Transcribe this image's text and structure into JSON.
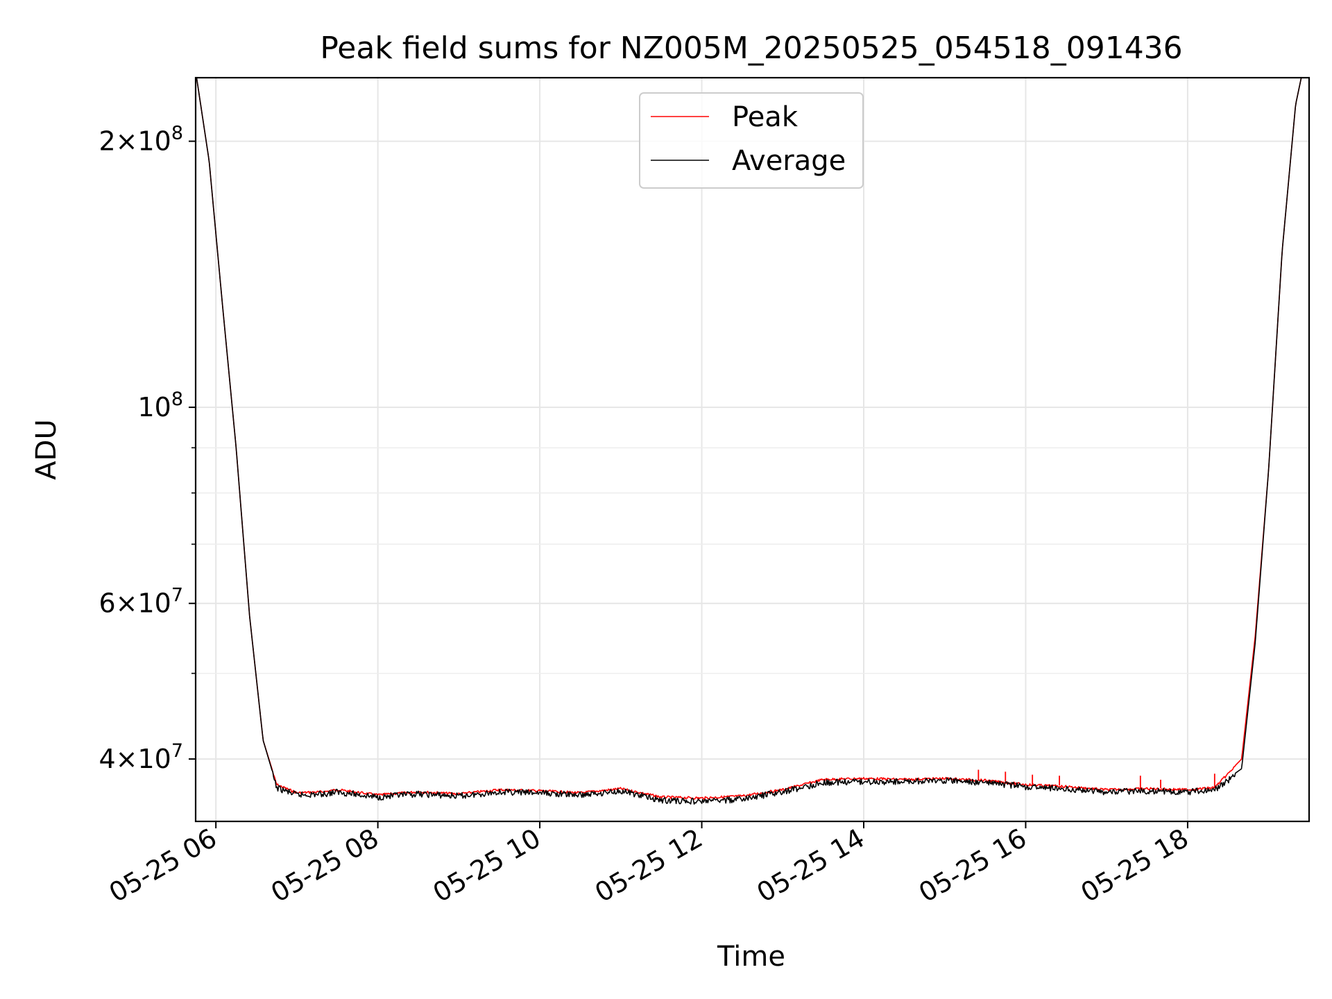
{
  "chart_data": {
    "type": "line",
    "title": "Peak field sums for NZ005M_20250525_054518_091436",
    "xlabel": "Time",
    "ylabel": "ADU",
    "y_scale": "log",
    "ylim": [
      34000000,
      236000000
    ],
    "xlim": [
      "2025-05-25T05:45",
      "2025-05-25T19:30"
    ],
    "x_ticks": [
      {
        "value": "2025-05-25T06:00",
        "label": "05-25 06"
      },
      {
        "value": "2025-05-25T08:00",
        "label": "05-25 08"
      },
      {
        "value": "2025-05-25T10:00",
        "label": "05-25 10"
      },
      {
        "value": "2025-05-25T12:00",
        "label": "05-25 12"
      },
      {
        "value": "2025-05-25T14:00",
        "label": "05-25 14"
      },
      {
        "value": "2025-05-25T16:00",
        "label": "05-25 16"
      },
      {
        "value": "2025-05-25T18:00",
        "label": "05-25 18"
      }
    ],
    "y_ticks": [
      {
        "value": 200000000,
        "mant": "2",
        "exp": "8"
      },
      {
        "value": 100000000,
        "mant": "",
        "exp": "8"
      },
      {
        "value": 60000000,
        "mant": "6",
        "exp": "7"
      },
      {
        "value": 40000000,
        "mant": "4",
        "exp": "7"
      }
    ],
    "grid": true,
    "legend": {
      "position": "upper center"
    },
    "series": [
      {
        "name": "Peak",
        "color": "#ff0000",
        "points": [
          [
            "2025-05-25T05:45",
            240000000
          ],
          [
            "2025-05-25T05:55",
            190000000
          ],
          [
            "2025-05-25T06:05",
            130000000
          ],
          [
            "2025-05-25T06:15",
            90000000
          ],
          [
            "2025-05-25T06:25",
            58000000
          ],
          [
            "2025-05-25T06:35",
            42000000
          ],
          [
            "2025-05-25T06:45",
            37500000
          ],
          [
            "2025-05-25T07:00",
            36700000
          ],
          [
            "2025-05-25T07:20",
            36800000
          ],
          [
            "2025-05-25T07:30",
            37000000
          ],
          [
            "2025-05-25T08:00",
            36500000
          ],
          [
            "2025-05-25T08:30",
            36800000
          ],
          [
            "2025-05-25T09:00",
            36600000
          ],
          [
            "2025-05-25T09:30",
            37000000
          ],
          [
            "2025-05-25T10:00",
            36900000
          ],
          [
            "2025-05-25T10:30",
            36700000
          ],
          [
            "2025-05-25T11:00",
            37100000
          ],
          [
            "2025-05-25T11:30",
            36300000
          ],
          [
            "2025-05-25T12:00",
            36200000
          ],
          [
            "2025-05-25T12:30",
            36400000
          ],
          [
            "2025-05-25T13:00",
            37000000
          ],
          [
            "2025-05-25T13:30",
            38000000
          ],
          [
            "2025-05-25T14:00",
            38100000
          ],
          [
            "2025-05-25T14:30",
            38000000
          ],
          [
            "2025-05-25T15:00",
            38100000
          ],
          [
            "2025-05-25T15:30",
            37900000
          ],
          [
            "2025-05-25T16:00",
            37500000
          ],
          [
            "2025-05-25T16:30",
            37300000
          ],
          [
            "2025-05-25T17:00",
            37000000
          ],
          [
            "2025-05-25T17:30",
            37100000
          ],
          [
            "2025-05-25T18:00",
            37000000
          ],
          [
            "2025-05-25T18:20",
            37200000
          ],
          [
            "2025-05-25T18:40",
            40000000
          ],
          [
            "2025-05-25T18:50",
            55000000
          ],
          [
            "2025-05-25T19:00",
            85000000
          ],
          [
            "2025-05-25T19:10",
            150000000
          ],
          [
            "2025-05-25T19:20",
            220000000
          ],
          [
            "2025-05-25T19:30",
            260000000
          ]
        ],
        "spikes": [
          {
            "x": "2025-05-25T15:25",
            "y": 38900000
          },
          {
            "x": "2025-05-25T15:45",
            "y": 38700000
          },
          {
            "x": "2025-05-25T16:05",
            "y": 38400000
          },
          {
            "x": "2025-05-25T16:25",
            "y": 38300000
          },
          {
            "x": "2025-05-25T17:25",
            "y": 38300000
          },
          {
            "x": "2025-05-25T17:40",
            "y": 37900000
          },
          {
            "x": "2025-05-25T18:20",
            "y": 38500000
          },
          {
            "x": "2025-05-25T18:40",
            "y": 40000000
          }
        ]
      },
      {
        "name": "Average",
        "color": "#000000",
        "points": [
          [
            "2025-05-25T05:45",
            240000000
          ],
          [
            "2025-05-25T05:55",
            190000000
          ],
          [
            "2025-05-25T06:05",
            130000000
          ],
          [
            "2025-05-25T06:15",
            90000000
          ],
          [
            "2025-05-25T06:25",
            58000000
          ],
          [
            "2025-05-25T06:35",
            42000000
          ],
          [
            "2025-05-25T06:45",
            37300000
          ],
          [
            "2025-05-25T07:00",
            36600000
          ],
          [
            "2025-05-25T07:20",
            36700000
          ],
          [
            "2025-05-25T07:30",
            36900000
          ],
          [
            "2025-05-25T08:00",
            36400000
          ],
          [
            "2025-05-25T08:30",
            36700000
          ],
          [
            "2025-05-25T09:00",
            36500000
          ],
          [
            "2025-05-25T09:30",
            36900000
          ],
          [
            "2025-05-25T10:00",
            36800000
          ],
          [
            "2025-05-25T10:30",
            36600000
          ],
          [
            "2025-05-25T11:00",
            37000000
          ],
          [
            "2025-05-25T11:30",
            36100000
          ],
          [
            "2025-05-25T12:00",
            36000000
          ],
          [
            "2025-05-25T12:30",
            36200000
          ],
          [
            "2025-05-25T13:00",
            36900000
          ],
          [
            "2025-05-25T13:30",
            37800000
          ],
          [
            "2025-05-25T14:00",
            37900000
          ],
          [
            "2025-05-25T14:30",
            37900000
          ],
          [
            "2025-05-25T15:00",
            38000000
          ],
          [
            "2025-05-25T15:30",
            37800000
          ],
          [
            "2025-05-25T16:00",
            37400000
          ],
          [
            "2025-05-25T16:30",
            37200000
          ],
          [
            "2025-05-25T17:00",
            36900000
          ],
          [
            "2025-05-25T17:30",
            37000000
          ],
          [
            "2025-05-25T18:00",
            36900000
          ],
          [
            "2025-05-25T18:20",
            37100000
          ],
          [
            "2025-05-25T18:40",
            39000000
          ],
          [
            "2025-05-25T18:50",
            54000000
          ],
          [
            "2025-05-25T19:00",
            85000000
          ],
          [
            "2025-05-25T19:10",
            150000000
          ],
          [
            "2025-05-25T19:20",
            220000000
          ],
          [
            "2025-05-25T19:30",
            260000000
          ]
        ]
      }
    ]
  }
}
